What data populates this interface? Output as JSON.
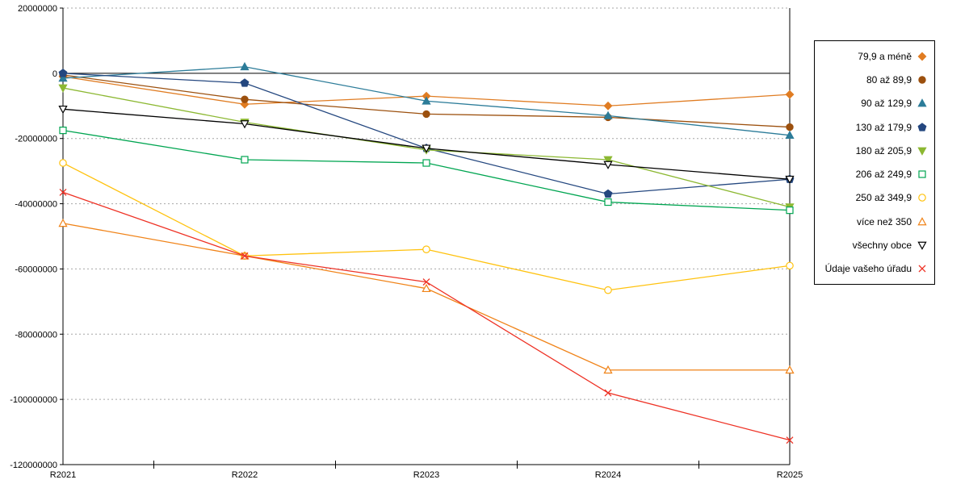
{
  "chart_data": {
    "type": "line",
    "title": "",
    "xlabel": "",
    "ylabel": "",
    "x": [
      "R2021",
      "R2022",
      "R2023",
      "R2024",
      "R2025"
    ],
    "ylim": [
      -120000000,
      20000000
    ],
    "grid": "horizontal-dashed",
    "legend_position": "right",
    "yticks": [
      {
        "value": 20000000,
        "label": "20000000"
      },
      {
        "value": 0,
        "label": "0"
      },
      {
        "value": -20000000,
        "label": "-20000000"
      },
      {
        "value": -40000000,
        "label": "-40000000"
      },
      {
        "value": -60000000,
        "label": "-60000000"
      },
      {
        "value": -80000000,
        "label": "-80000000"
      },
      {
        "value": -100000000,
        "label": "-100000000"
      },
      {
        "value": -120000000,
        "label": "-120000000"
      }
    ],
    "series": [
      {
        "name": "79,9 a méně",
        "color": "#E07C22",
        "marker": "diamond-filled",
        "values": [
          -1000000,
          -9500000,
          -7000000,
          -10000000,
          -6500000
        ]
      },
      {
        "name": "80 až 89,9",
        "color": "#9C500E",
        "marker": "circle-filled",
        "values": [
          -500000,
          -8000000,
          -12500000,
          -13500000,
          -16500000
        ]
      },
      {
        "name": "90 až 129,9",
        "color": "#2C7C99",
        "marker": "triangle-filled",
        "values": [
          -1500000,
          2000000,
          -8500000,
          -13000000,
          -19000000
        ]
      },
      {
        "name": "130 až 179,9",
        "color": "#24477F",
        "marker": "pentagon-filled",
        "values": [
          0,
          -3000000,
          -23000000,
          -37000000,
          -32500000
        ]
      },
      {
        "name": "180 až 205,9",
        "color": "#8CB832",
        "marker": "triangle-down-filled",
        "values": [
          -4500000,
          -15000000,
          -23500000,
          -26500000,
          -41000000
        ]
      },
      {
        "name": "206 až 249,9",
        "color": "#00A551",
        "marker": "square-open",
        "values": [
          -17500000,
          -26500000,
          -27500000,
          -39500000,
          -42000000
        ]
      },
      {
        "name": "250 až 349,9",
        "color": "#FFC20E",
        "marker": "circle-open",
        "values": [
          -27500000,
          -56000000,
          -54000000,
          -66500000,
          -59000000
        ]
      },
      {
        "name": "více než 350",
        "color": "#F08318",
        "marker": "triangle-open",
        "values": [
          -46000000,
          -56000000,
          -66000000,
          -91000000,
          -91000000
        ]
      },
      {
        "name": "všechny obce",
        "color": "#000000",
        "marker": "triangle-down-open",
        "values": [
          -11000000,
          -15500000,
          -23000000,
          -28000000,
          -32500000
        ]
      },
      {
        "name": "Údaje vašeho úřadu",
        "color": "#EE3124",
        "marker": "x",
        "values": [
          -36500000,
          -56000000,
          -64000000,
          -98000000,
          -112500000
        ]
      }
    ]
  }
}
